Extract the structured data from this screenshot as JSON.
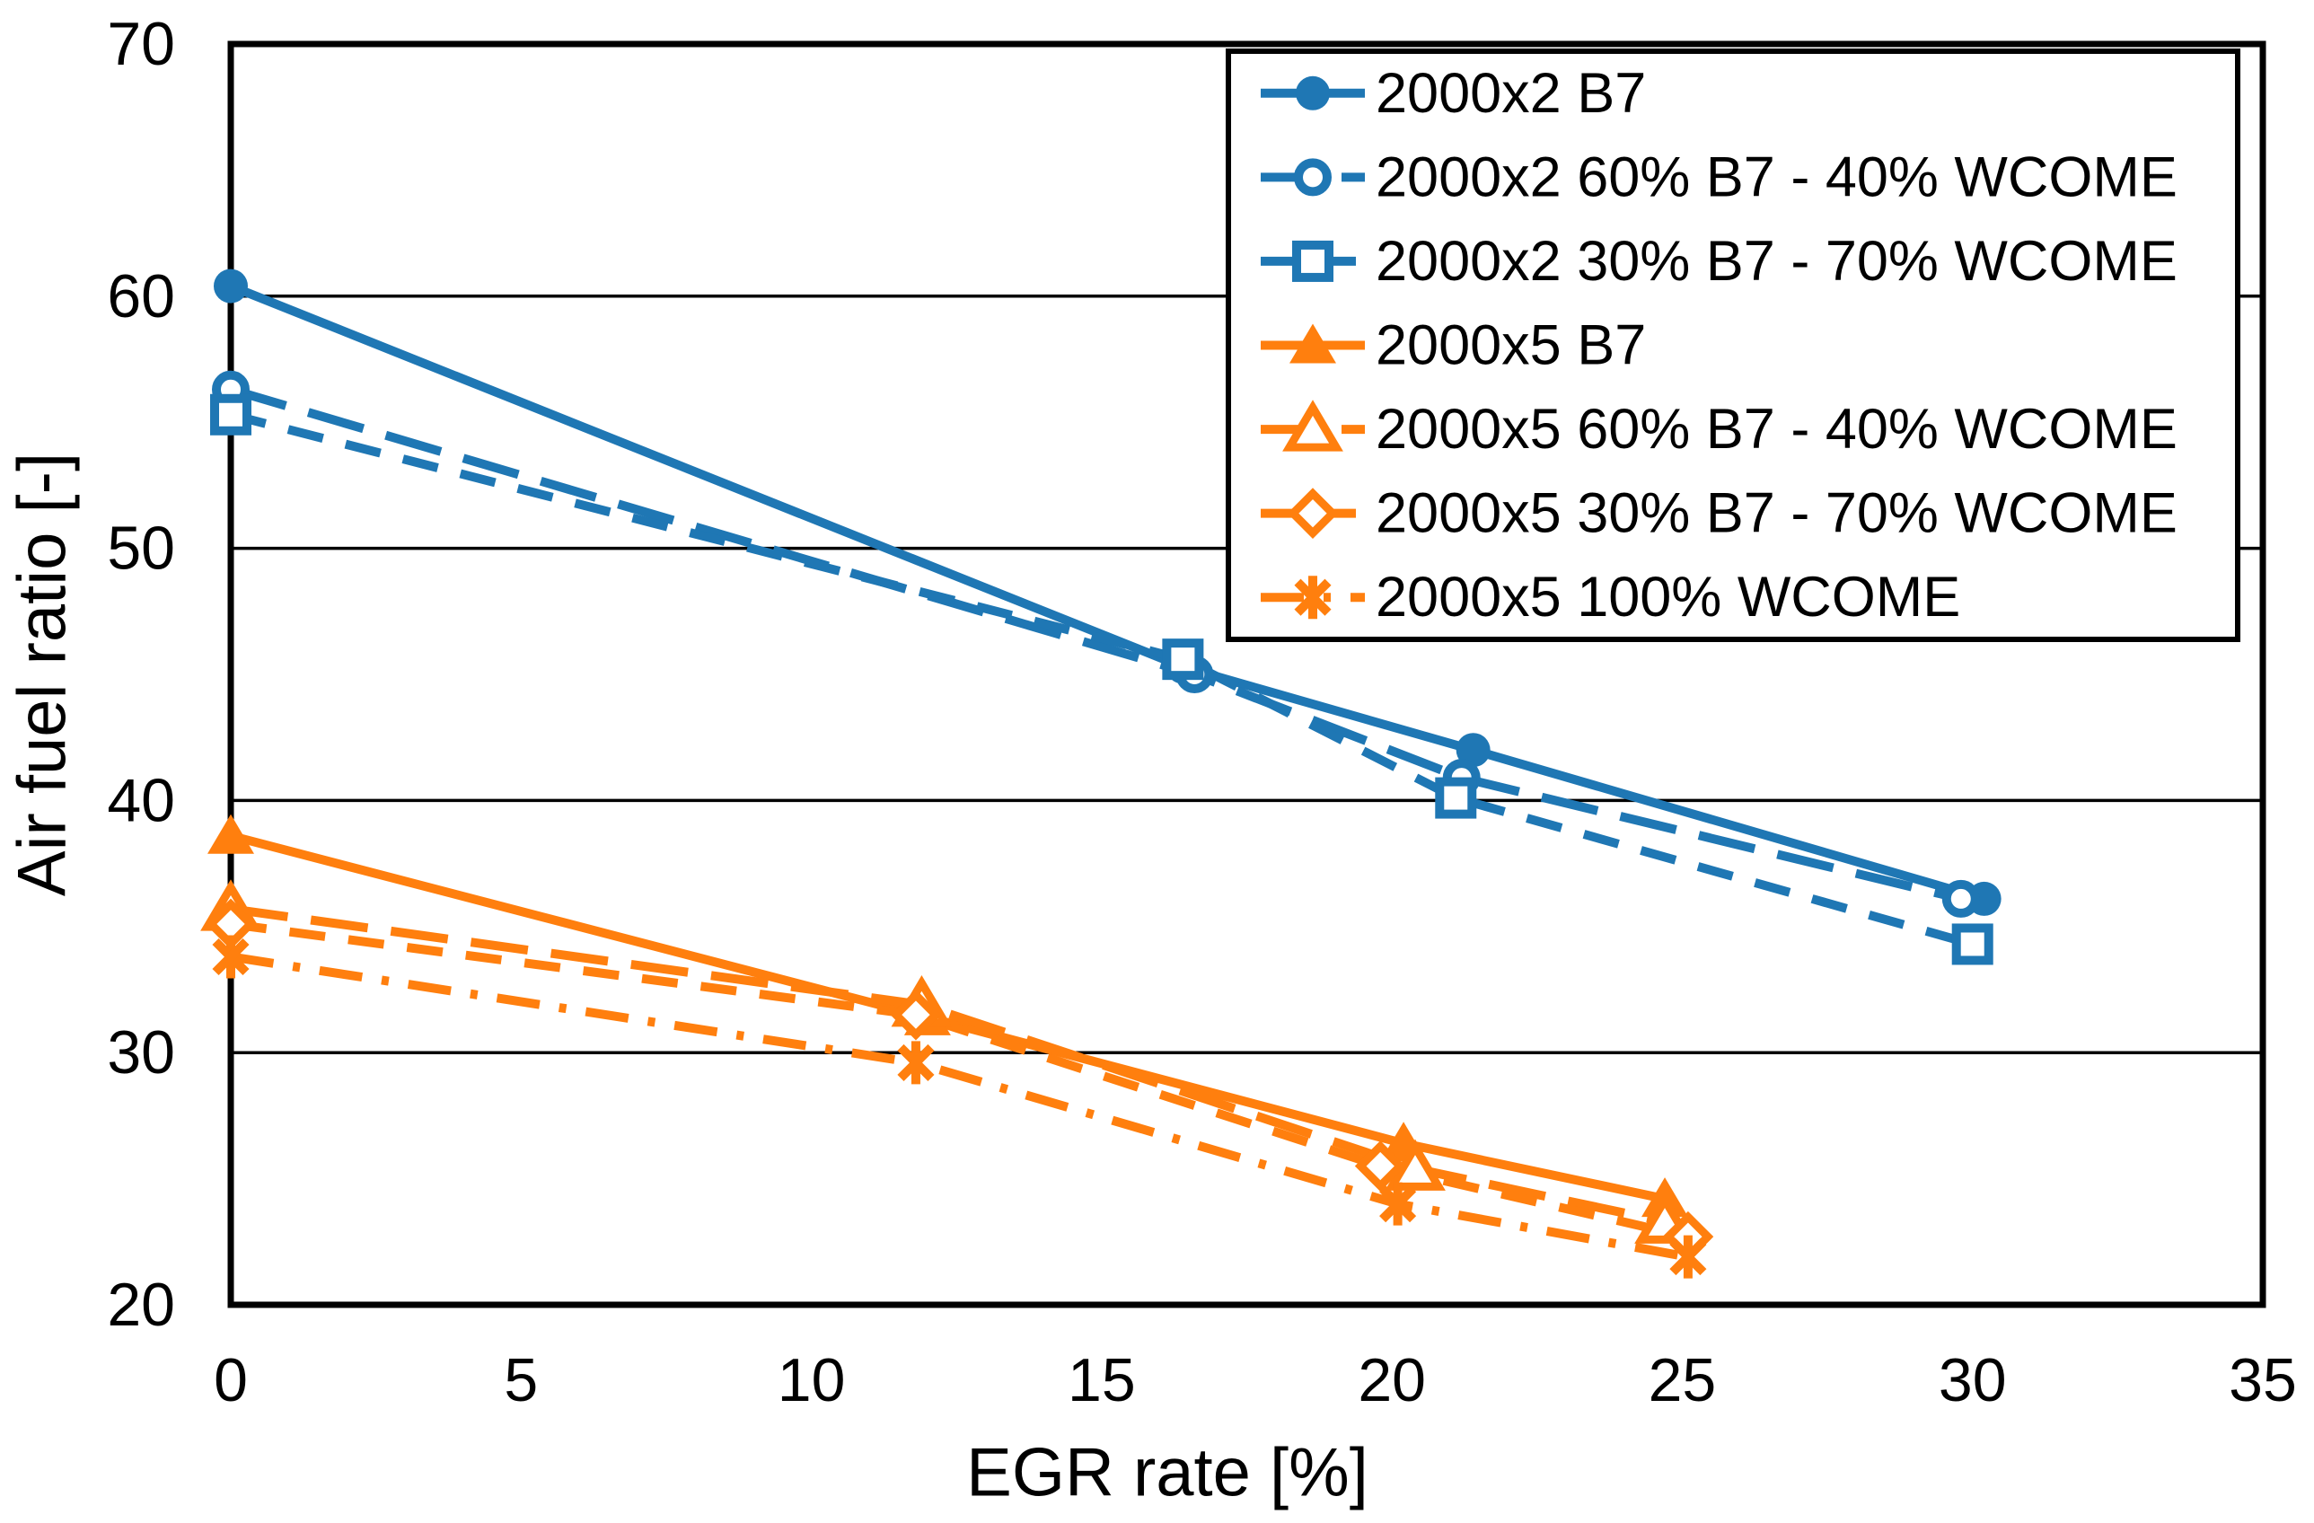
{
  "chart_data": {
    "type": "line",
    "title": "",
    "xlabel": "EGR rate [%]",
    "ylabel": "Air fuel ratio [-]",
    "xlim": [
      0,
      35
    ],
    "ylim": [
      20,
      70
    ],
    "xticks": [
      0,
      5,
      10,
      15,
      20,
      25,
      30,
      35
    ],
    "yticks": [
      20,
      30,
      40,
      50,
      60,
      70
    ],
    "grid": "horizontal-only",
    "legend_position": "top-right-inside",
    "colors": {
      "blue": "#1F77B4",
      "orange": "#FF7F0E",
      "axis": "#000000",
      "background": "#FFFFFF"
    },
    "series": [
      {
        "name": "2000x2 B7",
        "color": "#1F77B4",
        "line": "solid",
        "marker": "circle-filled",
        "x": [
          0,
          16.4,
          21.4,
          30.2
        ],
        "y": [
          60.4,
          45.3,
          42.0,
          36.1
        ]
      },
      {
        "name": "2000x2 60% B7 - 40% WCOME",
        "color": "#1F77B4",
        "line": "long-dash",
        "marker": "circle-open",
        "x": [
          0,
          16.6,
          21.2,
          29.8
        ],
        "y": [
          56.3,
          45.0,
          40.9,
          36.1
        ]
      },
      {
        "name": "2000x2 30% B7 - 70% WCOME",
        "color": "#1F77B4",
        "line": "short-dash",
        "marker": "square-open",
        "x": [
          0,
          16.4,
          21.1,
          30.0
        ],
        "y": [
          55.3,
          45.6,
          40.1,
          34.3
        ]
      },
      {
        "name": "2000x5 B7",
        "color": "#FF7F0E",
        "line": "solid",
        "marker": "triangle-filled",
        "x": [
          0,
          12.0,
          20.2,
          24.7
        ],
        "y": [
          38.6,
          31.4,
          26.4,
          24.2
        ]
      },
      {
        "name": "2000x5 60% B7 - 40% WCOME",
        "color": "#FF7F0E",
        "line": "long-dash",
        "marker": "triangle-open",
        "x": [
          0,
          11.9,
          20.4,
          24.7
        ],
        "y": [
          35.7,
          31.9,
          25.4,
          23.3
        ]
      },
      {
        "name": "2000x5 30% B7 - 70% WCOME",
        "color": "#FF7F0E",
        "line": "short-dash",
        "marker": "diamond-open",
        "x": [
          0,
          11.8,
          19.8,
          25.1
        ],
        "y": [
          35.1,
          31.5,
          25.5,
          22.7
        ]
      },
      {
        "name": "2000x5 100% WCOME",
        "color": "#FF7F0E",
        "line": "dash-dot",
        "marker": "asterisk",
        "x": [
          0,
          11.8,
          20.1,
          25.1
        ],
        "y": [
          33.8,
          29.6,
          24.0,
          21.9
        ]
      }
    ]
  }
}
